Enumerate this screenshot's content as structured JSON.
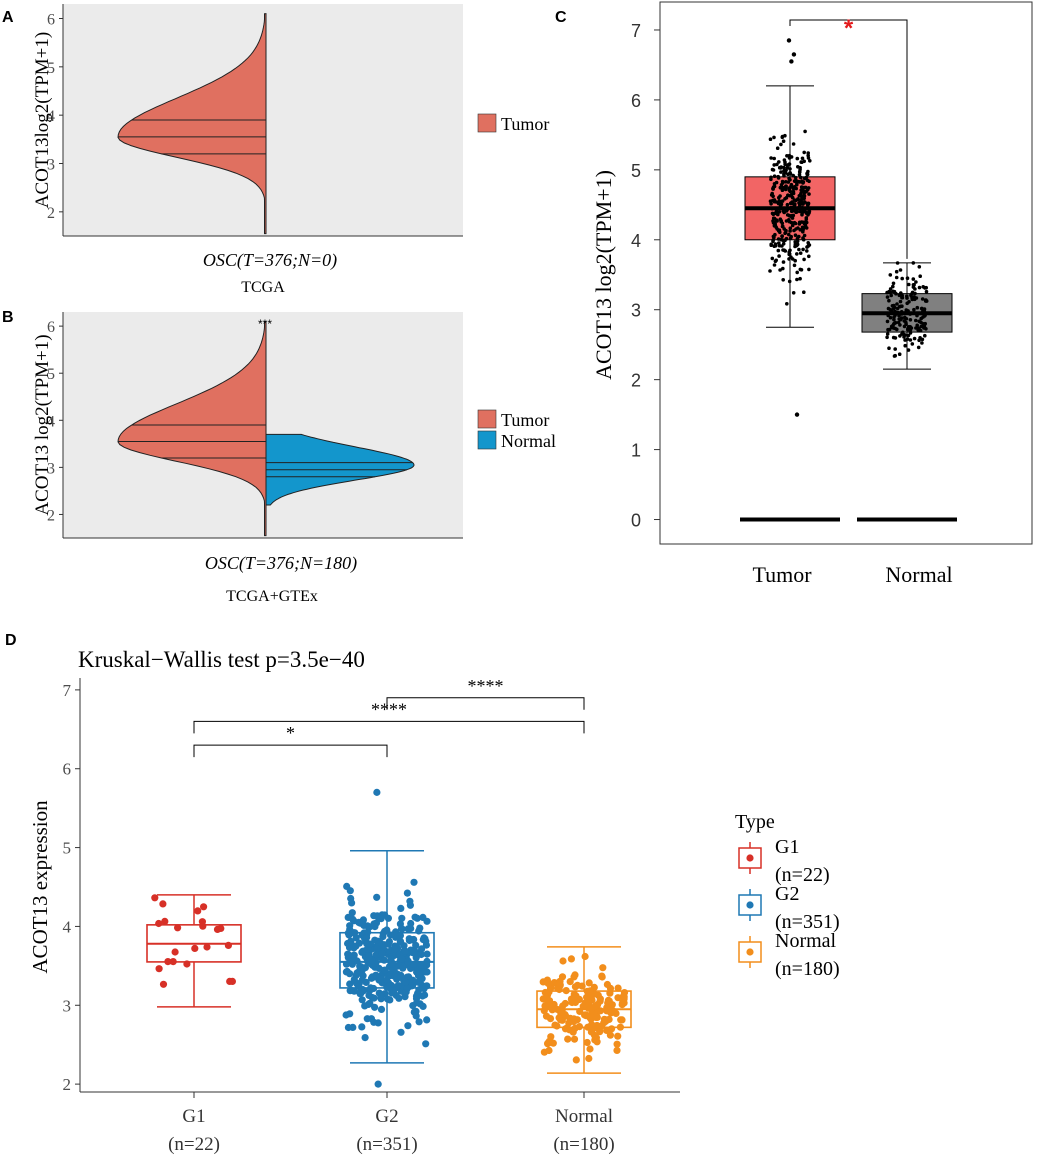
{
  "colors": {
    "tumor": "#E07060",
    "normal": "#1396CC",
    "panel_bg": "#EBEBEB",
    "boxC_tumor": "#F26565",
    "boxC_normal": "#808080",
    "sig_red": "#E31A1C",
    "g1": "#D73027",
    "g2": "#1F78B4",
    "normal_d": "#F28E1C"
  },
  "chart_data": [
    {
      "panel": "A",
      "type": "violin",
      "ylabel": "ACOT13log2(TPM+1)",
      "yticks": [
        "2",
        "3",
        "4",
        "5",
        "6"
      ],
      "ylim": [
        1.5,
        6.3
      ],
      "xlabel_group": "OSC(T=376;N=0)",
      "xlabel_source": "TCGA",
      "legend": [
        "Tumor"
      ],
      "series": [
        {
          "name": "Tumor",
          "side": "left",
          "min": 1.55,
          "max": 6.1,
          "q1": 3.2,
          "median": 3.55,
          "q3": 3.9,
          "mode": 3.55
        }
      ]
    },
    {
      "panel": "B",
      "type": "split-violin",
      "ylabel": "ACOT13  log2(TPM+1)",
      "yticks": [
        "2",
        "3",
        "4",
        "5",
        "6"
      ],
      "ylim": [
        1.5,
        6.3
      ],
      "xlabel_group": "OSC(T=376;N=180)",
      "xlabel_source": "TCGA+GTEx",
      "significance": "***",
      "legend": [
        "Tumor",
        "Normal"
      ],
      "series": [
        {
          "name": "Tumor",
          "side": "left",
          "min": 1.55,
          "max": 6.1,
          "q1": 3.2,
          "median": 3.55,
          "q3": 3.9,
          "mode": 3.55
        },
        {
          "name": "Normal",
          "side": "right",
          "min": 2.2,
          "max": 3.7,
          "q1": 2.8,
          "median": 2.95,
          "q3": 3.1,
          "mode": 3.05
        }
      ]
    },
    {
      "panel": "C",
      "type": "box",
      "ylabel": "ACOT13 log2(TPM+1)",
      "yticks": [
        "0",
        "1",
        "2",
        "3",
        "4",
        "5",
        "6",
        "7"
      ],
      "ylim": [
        -0.35,
        7.4
      ],
      "categories": [
        "Tumor",
        "Normal"
      ],
      "significance": "*",
      "series": [
        {
          "name": "Tumor",
          "q1": 4.0,
          "median": 4.45,
          "q3": 4.9,
          "whisker_low": 2.75,
          "whisker_high": 6.2,
          "outliers": [
            1.5,
            6.55,
            6.65,
            6.85
          ],
          "n_points": 376
        },
        {
          "name": "Normal",
          "q1": 2.68,
          "median": 2.95,
          "q3": 3.23,
          "whisker_low": 2.15,
          "whisker_high": 3.67,
          "outliers": [],
          "n_points": 180
        }
      ]
    },
    {
      "panel": "D",
      "type": "box",
      "title": "Kruskal−Wallis test p=3.5e−40",
      "ylabel": "ACOT13 expression",
      "yticks": [
        "2",
        "3",
        "4",
        "5",
        "6",
        "7"
      ],
      "ylim": [
        1.9,
        7.1
      ],
      "categories": [
        {
          "name": "G1",
          "n": "(n=22)"
        },
        {
          "name": "G2",
          "n": "(n=351)"
        },
        {
          "name": "Normal",
          "n": "(n=180)"
        }
      ],
      "legend_title": "Type",
      "legend": [
        {
          "name": "G1",
          "n": "(n=22)"
        },
        {
          "name": "G2",
          "n": "(n=351)"
        },
        {
          "name": "Normal",
          "n": "(n=180)"
        }
      ],
      "comparisons": [
        {
          "from": "G1",
          "to": "G2",
          "y": 6.3,
          "label": "*"
        },
        {
          "from": "G1",
          "to": "Normal",
          "y": 6.6,
          "label": "****"
        },
        {
          "from": "G2",
          "to": "Normal",
          "y": 6.9,
          "label": "****"
        }
      ],
      "series": [
        {
          "name": "G1",
          "q1": 3.55,
          "median": 3.78,
          "q3": 4.02,
          "whisker_low": 2.98,
          "whisker_high": 4.4,
          "n_points": 22
        },
        {
          "name": "G2",
          "q1": 3.22,
          "median": 3.55,
          "q3": 3.92,
          "whisker_low": 2.27,
          "whisker_high": 4.96,
          "n_points": 351,
          "extra_points": [
            2.0,
            5.7
          ]
        },
        {
          "name": "Normal",
          "q1": 2.72,
          "median": 2.95,
          "q3": 3.18,
          "whisker_low": 2.14,
          "whisker_high": 3.74,
          "n_points": 180
        }
      ]
    }
  ],
  "panels": {
    "A": {
      "label": "A"
    },
    "B": {
      "label": "B"
    },
    "C": {
      "label": "C"
    },
    "D": {
      "label": "D"
    }
  }
}
